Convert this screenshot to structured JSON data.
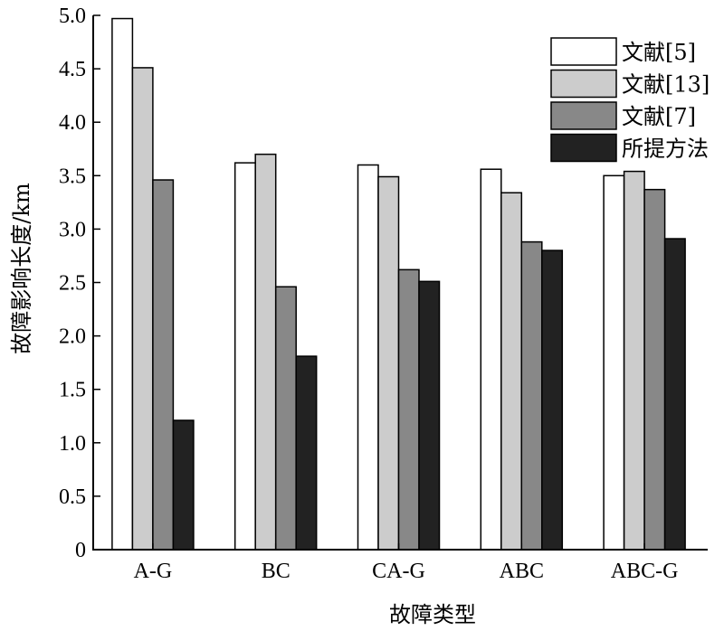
{
  "chart_data": {
    "type": "bar",
    "xlabel": "故障类型",
    "ylabel": "故障影响长度/km",
    "ylim": [
      0,
      5.0
    ],
    "yticks": [
      "0",
      "0.5",
      "1.0",
      "1.5",
      "2.0",
      "2.5",
      "3.0",
      "3.5",
      "4.0",
      "4.5",
      "5.0"
    ],
    "categories": [
      "A-G",
      "BC",
      "CA-G",
      "ABC",
      "ABC-G"
    ],
    "series": [
      {
        "name": "文献[5]",
        "color": "#ffffff",
        "values": [
          4.97,
          3.62,
          3.6,
          3.56,
          3.5
        ]
      },
      {
        "name": "文献[13]",
        "color": "#cccccc",
        "values": [
          4.51,
          3.7,
          3.49,
          3.34,
          3.54
        ]
      },
      {
        "name": "文献[7]",
        "color": "#888888",
        "values": [
          3.46,
          2.46,
          2.62,
          2.88,
          3.37
        ]
      },
      {
        "name": "所提方法",
        "color": "#222222",
        "values": [
          1.21,
          1.81,
          2.51,
          2.8,
          2.91
        ]
      }
    ],
    "legend_position": "top-right",
    "grid": false
  }
}
